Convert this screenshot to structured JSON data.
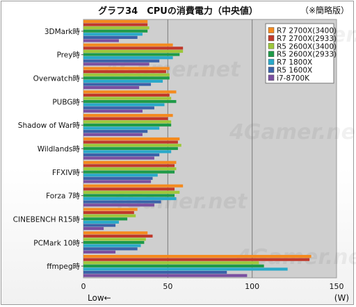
{
  "chart_data": {
    "type": "bar",
    "orientation": "horizontal",
    "title": "グラフ34　CPUの消費電力（中央値）",
    "note": "（※簡略版）",
    "xlabel_left": "Low←",
    "xlabel_right": "(W)",
    "xlim": [
      0,
      150
    ],
    "xticks": [
      0,
      50,
      100,
      150
    ],
    "grid": true,
    "legend_position": "top-right",
    "categories": [
      "3DMark時",
      "Prey時",
      "Overwatch時",
      "PUBG時",
      "Shadow of War時",
      "Wildlands時",
      "FFXIV時",
      "Forza 7時",
      "CINEBENCH R15時",
      "PCMark 10時",
      "ffmpeg時"
    ],
    "series": [
      {
        "name": "R7 2700X(3400)",
        "color": "#f48a1e",
        "values": [
          38,
          53,
          51,
          55,
          53,
          57,
          55,
          59,
          32,
          38,
          135
        ]
      },
      {
        "name": "R7 2700X(2933)",
        "color": "#c0392b",
        "values": [
          38,
          59,
          49,
          51,
          50,
          56,
          54,
          54,
          30,
          41,
          134
        ]
      },
      {
        "name": "R5 2600X(3400)",
        "color": "#9dc73b",
        "values": [
          39,
          59,
          51,
          52,
          52,
          58,
          55,
          57,
          31,
          37,
          104
        ]
      },
      {
        "name": "R5 2600X(2933)",
        "color": "#1f9a48",
        "values": [
          38,
          57,
          51,
          55,
          52,
          56,
          54,
          54,
          26,
          36,
          107
        ]
      },
      {
        "name": "R7 1800X",
        "color": "#29a9c9",
        "values": [
          35,
          53,
          47,
          48,
          45,
          52,
          44,
          55,
          21,
          34,
          121
        ]
      },
      {
        "name": "R5 1600X",
        "color": "#3b62a8",
        "values": [
          32,
          45,
          40,
          42,
          38,
          45,
          41,
          46,
          19,
          32,
          85
        ]
      },
      {
        "name": "i7-8700K",
        "color": "#7a4fa0",
        "values": [
          21,
          39,
          33,
          35,
          35,
          42,
          40,
          42,
          12,
          19,
          97
        ]
      }
    ]
  }
}
